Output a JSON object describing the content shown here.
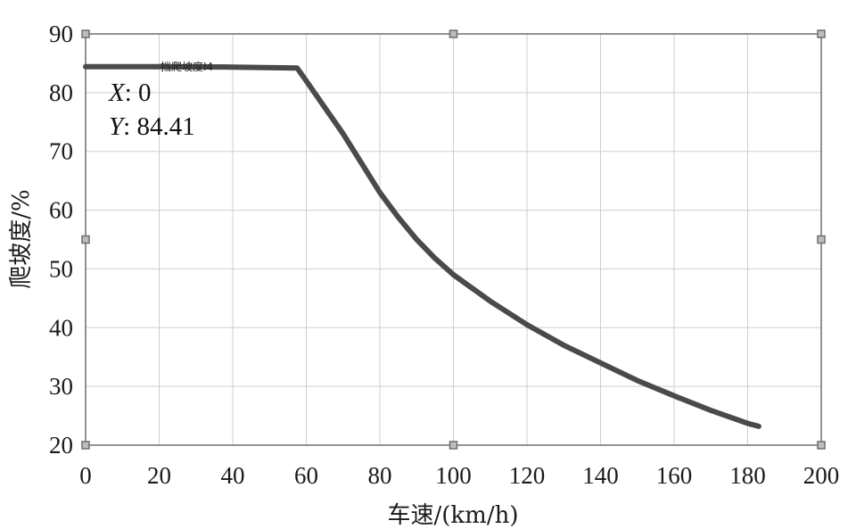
{
  "chart_data": {
    "type": "line",
    "xlabel": "车速/(km/h)",
    "ylabel": "爬坡度/%",
    "xlim": [
      0,
      200
    ],
    "ylim": [
      20,
      90
    ],
    "x_ticks": [
      0,
      20,
      40,
      60,
      80,
      100,
      120,
      140,
      160,
      180,
      200
    ],
    "y_ticks": [
      20,
      30,
      40,
      50,
      60,
      70,
      80,
      90
    ],
    "grid": true,
    "series": [
      {
        "name": "挡爬坡度I4",
        "color": "#4a4a4a",
        "x": [
          0,
          20,
          40,
          57.5,
          60,
          65,
          70,
          75,
          80,
          85,
          90,
          95,
          100,
          110,
          120,
          130,
          140,
          150,
          160,
          170,
          180,
          183
        ],
        "y": [
          84.41,
          84.41,
          84.35,
          84.2,
          82.0,
          77.5,
          73.0,
          68.0,
          63.0,
          58.8,
          55.0,
          51.8,
          49.0,
          44.5,
          40.5,
          37.0,
          34.0,
          31.0,
          28.4,
          25.9,
          23.7,
          23.2
        ]
      }
    ],
    "datatip": {
      "x_key": "X",
      "x_value": "0",
      "y_key": "Y",
      "y_value": "84.41"
    }
  }
}
